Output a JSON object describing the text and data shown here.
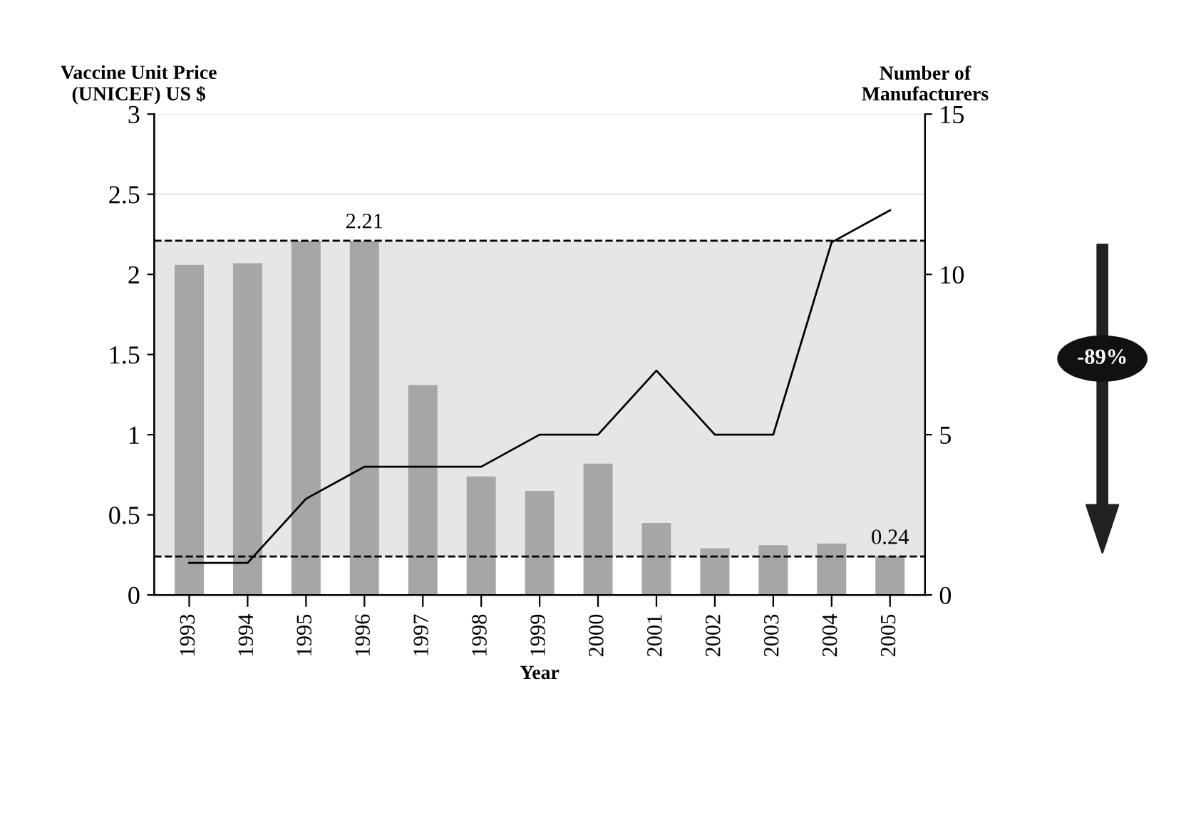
{
  "chart_data": {
    "type": "bar",
    "xlabel": "Year",
    "ylabel": "Vaccine Unit Price\n(UNICEF) US $",
    "y2label": "Number of\nManufacturers",
    "categories": [
      "1993",
      "1994",
      "1995",
      "1996",
      "1997",
      "1998",
      "1999",
      "2000",
      "2001",
      "2002",
      "2003",
      "2004",
      "2005"
    ],
    "series": [
      {
        "color": "#a6a6a6",
        "values": [
          2.06,
          2.07,
          2.21,
          2.21,
          1.31,
          0.74,
          0.65,
          0.82,
          0.45,
          0.29,
          0.31,
          0.32,
          0.24
        ]
      },
      {
        "type": "line",
        "axis": "y2",
        "color": "#000000",
        "values": [
          1,
          1,
          3,
          4,
          4,
          4,
          5,
          5,
          7,
          5,
          5,
          11,
          12
        ]
      }
    ],
    "ylim": [
      0,
      3
    ],
    "yticks": [
      0,
      0.5,
      1,
      1.5,
      2,
      2.5,
      3
    ],
    "y2lim": [
      0,
      15
    ],
    "y2ticks": [
      0,
      5,
      10,
      15
    ],
    "grid": "y",
    "ref_lines": [
      {
        "axis": "y",
        "value": 2.21,
        "line_style": "dashed",
        "color": "#000000"
      },
      {
        "axis": "y",
        "value": 0.24,
        "line_style": "dashed",
        "color": "#000000"
      }
    ],
    "bands": [
      {
        "axis": "y",
        "from": 0.24,
        "to": 2.21,
        "color": "#e6e6e6"
      }
    ],
    "annotations": [
      {
        "text": "2.21",
        "x": "1996",
        "y": 2.21
      },
      {
        "text": "0.24",
        "x": "2005",
        "y": 0.24
      },
      "-89%"
    ]
  }
}
